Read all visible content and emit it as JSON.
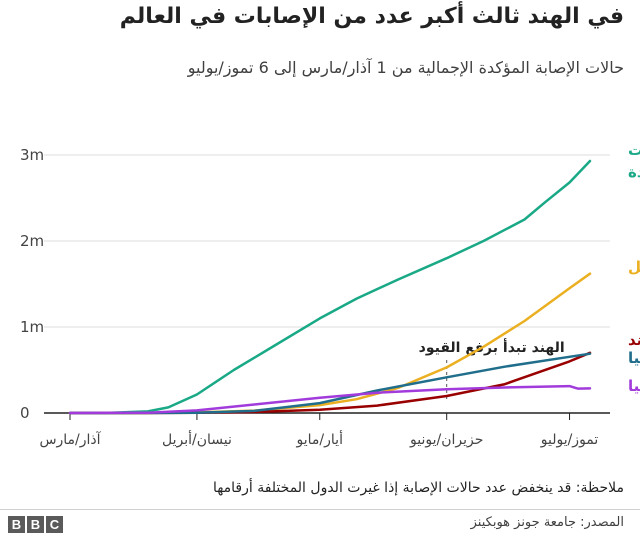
{
  "title": "في الهند ثالث أكبر عدد من الإصابات في العالم",
  "subtitle": "حالات الإصابة المؤكدة الإجمالية من 1 آذار/مارس إلى 6 تموز/يوليو",
  "note": "ملاحظة: قد ينخفض عدد حالات الإصابة إذا غيرت الدول المختلفة أرقامها",
  "source": "المصدر: جامعة جونز هوبكينز",
  "logo": [
    "B",
    "B",
    "C"
  ],
  "chart_data": {
    "type": "line",
    "x_axis": {
      "range": [
        "2020-03-01",
        "2020-07-06"
      ],
      "ticks": [
        {
          "date": "2020-03-01",
          "label": "آذار/مارس"
        },
        {
          "date": "2020-04-01",
          "label": "نيسان/أبريل"
        },
        {
          "date": "2020-05-01",
          "label": "أيار/مايو"
        },
        {
          "date": "2020-06-01",
          "label": "حزيران/يونيو"
        },
        {
          "date": "2020-07-01",
          "label": "تموز/يوليو"
        }
      ]
    },
    "y_axis": {
      "range": [
        0,
        3000000
      ],
      "ticks": [
        {
          "value": 0,
          "label": "0"
        },
        {
          "value": 1000000,
          "label": "1m"
        },
        {
          "value": 2000000,
          "label": "2m"
        },
        {
          "value": 3000000,
          "label": "3m"
        }
      ],
      "grid": true
    },
    "series": [
      {
        "name": "الولايات المتحدة",
        "color": "#1aa986",
        "points": [
          [
            "2020-03-01",
            0
          ],
          [
            "2020-03-10",
            1000
          ],
          [
            "2020-03-20",
            19000
          ],
          [
            "2020-03-25",
            65000
          ],
          [
            "2020-04-01",
            215000
          ],
          [
            "2020-04-10",
            500000
          ],
          [
            "2020-04-20",
            785000
          ],
          [
            "2020-05-01",
            1100000
          ],
          [
            "2020-05-10",
            1330000
          ],
          [
            "2020-05-20",
            1550000
          ],
          [
            "2020-06-01",
            1800000
          ],
          [
            "2020-06-10",
            2000000
          ],
          [
            "2020-06-20",
            2250000
          ],
          [
            "2020-06-25",
            2450000
          ],
          [
            "2020-07-01",
            2680000
          ],
          [
            "2020-07-06",
            2930000
          ]
        ]
      },
      {
        "name": "البرازيل",
        "color": "#ebb022",
        "points": [
          [
            "2020-03-01",
            0
          ],
          [
            "2020-03-20",
            900
          ],
          [
            "2020-04-01",
            6800
          ],
          [
            "2020-04-15",
            28000
          ],
          [
            "2020-05-01",
            92000
          ],
          [
            "2020-05-10",
            160000
          ],
          [
            "2020-05-20",
            290000
          ],
          [
            "2020-06-01",
            530000
          ],
          [
            "2020-06-10",
            770000
          ],
          [
            "2020-06-20",
            1070000
          ],
          [
            "2020-07-01",
            1450000
          ],
          [
            "2020-07-06",
            1620000
          ]
        ]
      },
      {
        "name": "الهند",
        "color": "#990000",
        "points": [
          [
            "2020-03-01",
            0
          ],
          [
            "2020-03-20",
            200
          ],
          [
            "2020-04-01",
            1800
          ],
          [
            "2020-04-15",
            12000
          ],
          [
            "2020-05-01",
            37000
          ],
          [
            "2020-05-15",
            86000
          ],
          [
            "2020-06-01",
            198000
          ],
          [
            "2020-06-15",
            333000
          ],
          [
            "2020-07-01",
            600000
          ],
          [
            "2020-07-06",
            700000
          ]
        ]
      },
      {
        "name": "روسيا",
        "color": "#206e8c",
        "points": [
          [
            "2020-03-01",
            0
          ],
          [
            "2020-03-25",
            600
          ],
          [
            "2020-04-01",
            2800
          ],
          [
            "2020-04-15",
            24000
          ],
          [
            "2020-05-01",
            115000
          ],
          [
            "2020-05-15",
            262000
          ],
          [
            "2020-06-01",
            415000
          ],
          [
            "2020-06-15",
            537000
          ],
          [
            "2020-07-01",
            654000
          ],
          [
            "2020-07-06",
            690000
          ]
        ]
      },
      {
        "name": "بريطانيا",
        "color": "#a23bdb",
        "points": [
          [
            "2020-03-01",
            40
          ],
          [
            "2020-03-20",
            4000
          ],
          [
            "2020-04-01",
            30000
          ],
          [
            "2020-04-15",
            99000
          ],
          [
            "2020-05-01",
            178000
          ],
          [
            "2020-05-15",
            236000
          ],
          [
            "2020-06-01",
            276000
          ],
          [
            "2020-06-15",
            296000
          ],
          [
            "2020-07-01",
            313000
          ],
          [
            "2020-07-03",
            284000
          ],
          [
            "2020-07-06",
            286000
          ]
        ]
      }
    ],
    "series_labels": [
      {
        "series": 0,
        "lines": [
          "الولايات",
          "المتحدة"
        ]
      },
      {
        "series": 1,
        "lines": [
          "البرازيل"
        ]
      },
      {
        "series": 2,
        "lines": [
          "الهند"
        ]
      },
      {
        "series": 3,
        "lines": [
          "روسيا"
        ]
      },
      {
        "series": 4,
        "lines": [
          "بريطانيا"
        ]
      }
    ],
    "annotation": {
      "text": "الهند تبدأ برفع القيود",
      "date": "2020-06-01",
      "value": 130000
    },
    "axis_color": "#222222",
    "grid_color": "#dddddd"
  }
}
